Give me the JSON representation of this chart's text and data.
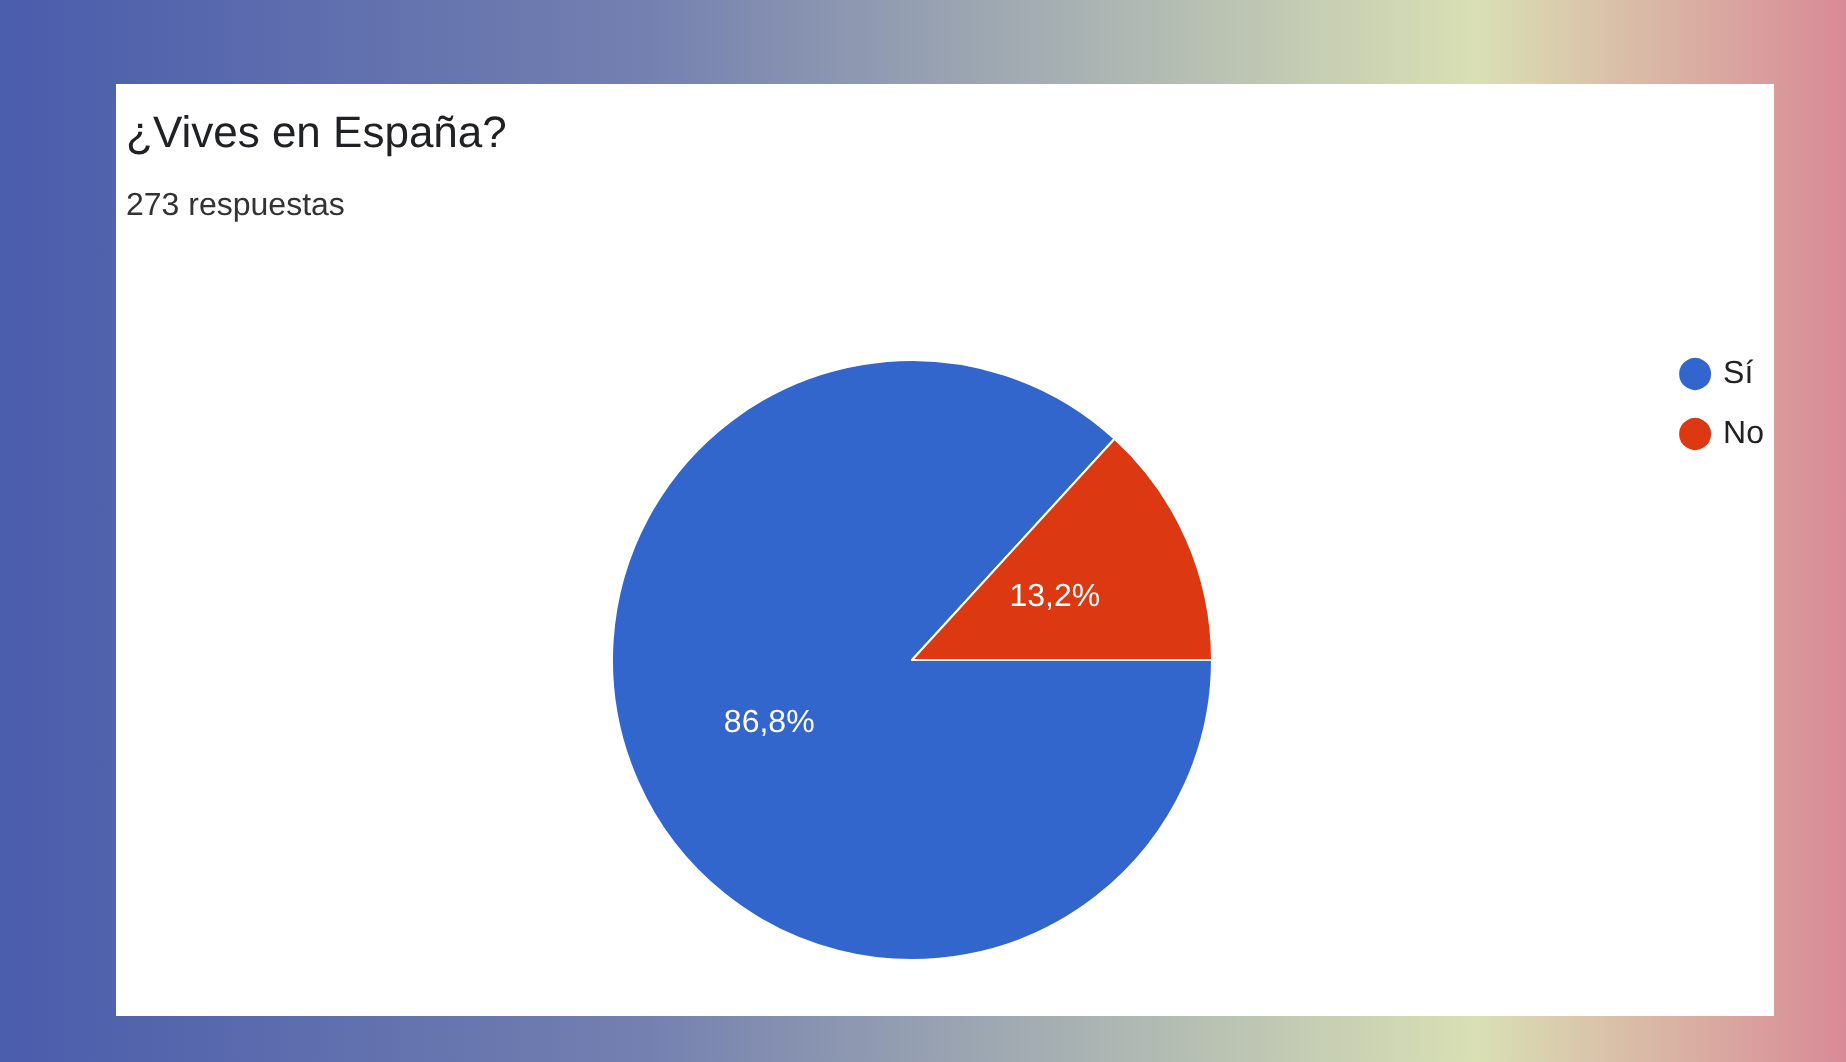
{
  "chart_data": {
    "type": "pie",
    "title": "¿Vives en España?",
    "subtitle": "273 respuestas",
    "categories": [
      "Sí",
      "No"
    ],
    "values": [
      86.8,
      13.2
    ],
    "colors": [
      "#3366cc",
      "#dc3912"
    ],
    "value_labels": [
      "86,8%",
      "13,2%"
    ],
    "legend": "top right"
  }
}
